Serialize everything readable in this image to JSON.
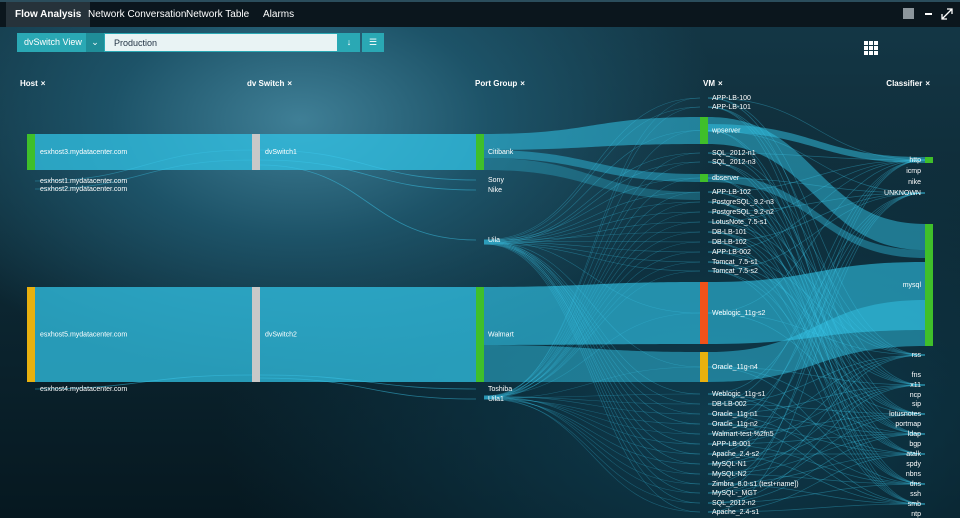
{
  "tabs": [
    "Flow Analysis",
    "Network Conversation",
    "Network Table",
    "Alarms"
  ],
  "toolbar": {
    "view": "dvSwitch View",
    "scope": "Production"
  },
  "columns": [
    {
      "title": "Host",
      "close": "×",
      "nodes": [
        "esxhost3.mydatacenter.com",
        "esxhost1.mydatacenter.com",
        "esxhost2.mydatacenter.com",
        "esxhost5.mydatacenter.com",
        "esxhost4.mydatacenter.com"
      ]
    },
    {
      "title": "dv Switch",
      "close": "×",
      "nodes": [
        "dvSwitch1",
        "dvSwitch2"
      ]
    },
    {
      "title": "Port Group",
      "close": "×",
      "nodes": [
        "Citibank",
        "Sony",
        "Nike",
        "Uila",
        "Walmart",
        "Toshiba",
        "Uila1"
      ]
    },
    {
      "title": "VM",
      "close": "×",
      "nodes": [
        "APP-LB-100",
        "APP-LB-101",
        "wpserver",
        "SQL_2012-n1",
        "SQL_2012-n3",
        "dbserver",
        "APP-LB-102",
        "PostgreSQL_9.2-n3",
        "PostgreSQL_9.2-n2",
        "LotusNote_7.5-s1",
        "DB-LB-101",
        "DB-LB-102",
        "APP-LB-002",
        "Tomcat_7.5-s1",
        "Tomcat_7.5-s2",
        "Weblogic_11g-s2",
        "Oracle_11g-n4",
        "Weblogic_11g-s1",
        "DB-LB-002",
        "Oracle_11g-n1",
        "Oracle_11g-n2",
        "Walmart-test-%2fn5",
        "APP-LB-001",
        "Apache_2.4-s2",
        "MySQL-N1",
        "MySQL-N2",
        "Zimbra_8.0-s1 (test+name])",
        "MySQL-_MGT",
        "SQL_2012-n2",
        "Apache_2.4-s1"
      ]
    },
    {
      "title": "Classifier",
      "close": "×",
      "nodes": [
        "http",
        "icmp",
        "nike",
        "UNKNOWN",
        "mysql",
        "rss",
        "fns",
        "x11",
        "ncp",
        "sip",
        "lotusnotes",
        "portmap",
        "ldap",
        "bgp",
        "atalk",
        "spdy",
        "nbns",
        "dns",
        "ssh",
        "smb",
        "ntp"
      ]
    }
  ]
}
